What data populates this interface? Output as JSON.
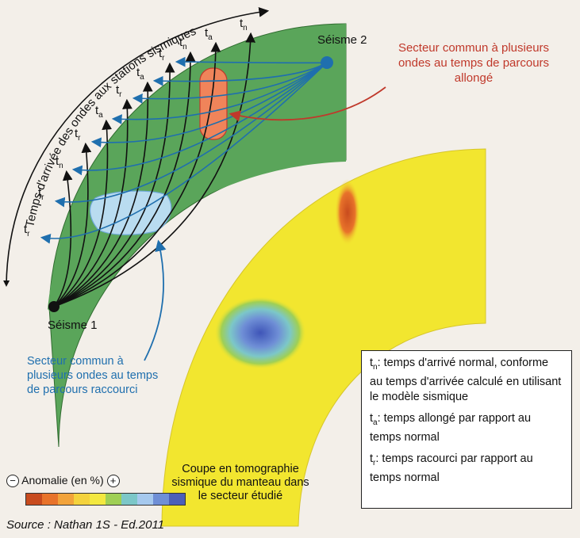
{
  "figure": {
    "arc_axis_label": "Temps d'arrivée des ondes aux stations sismiques",
    "station_labels": [
      "t",
      "t",
      "t",
      "t",
      "t",
      "t",
      "t",
      "t",
      "t",
      "t",
      "t"
    ],
    "station_subs": [
      "r",
      "r",
      "n",
      "r",
      "a",
      "r",
      "a",
      "r",
      "n",
      "a",
      "n"
    ],
    "seisme1": "Séisme 1",
    "seisme2": "Séisme 2",
    "note_long": "Secteur commun à plusieurs ondes au temps de parcours allongé",
    "note_short": "Secteur commun à plusieurs ondes au temps de parcours raccourci",
    "tomo_caption": "Coupe en tomographie sismique du manteau dans le secteur étudié"
  },
  "anomaly_scale": {
    "title": "Anomalie (en %)",
    "minus": "−",
    "plus": "+",
    "colors": [
      "#c84b1e",
      "#e8732a",
      "#f2a33a",
      "#f4d23c",
      "#f3e840",
      "#9fcf55",
      "#7cc7c8",
      "#a6c9ee",
      "#6f8fd6",
      "#4c5fb8"
    ]
  },
  "legend": {
    "tn": {
      "sym": "t",
      "sub": "n",
      "text": ": temps d'arrivé normal, conforme au temps d'arrivée calculé en utilisant le modèle sismique"
    },
    "ta": {
      "sym": "t",
      "sub": "a",
      "text": ": temps allongé par rapport au temps normal"
    },
    "tr": {
      "sym": "t",
      "sub": "r",
      "text": ": temps racourci par rapport au temps normal"
    }
  },
  "source": "Source : Nathan 1S - Ed.2011",
  "colors": {
    "green": "#5aa55a",
    "yellow": "#f2e62f",
    "blue_ray": "#1f6fae",
    "red_note": "#c0392b",
    "dark": "#111111"
  }
}
